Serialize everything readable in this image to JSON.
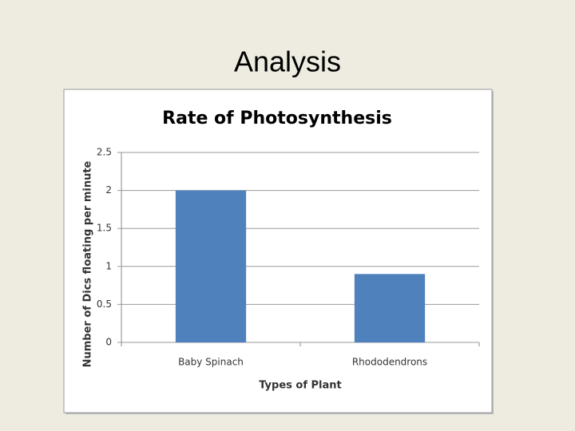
{
  "slide_title": "Analysis",
  "chart_data": {
    "type": "bar",
    "title": "Rate of Photosynthesis",
    "x_label": "Types of Plant",
    "y_label": "Number of Dics floating per minute",
    "categories": [
      "Baby Spinach",
      "Rhododendrons"
    ],
    "values": [
      2,
      0.9
    ],
    "color": "#4f81bd",
    "ylim": [
      0,
      2.5
    ],
    "yticks": [
      0,
      0.5,
      1,
      1.5,
      2,
      2.5
    ],
    "grid": true
  }
}
